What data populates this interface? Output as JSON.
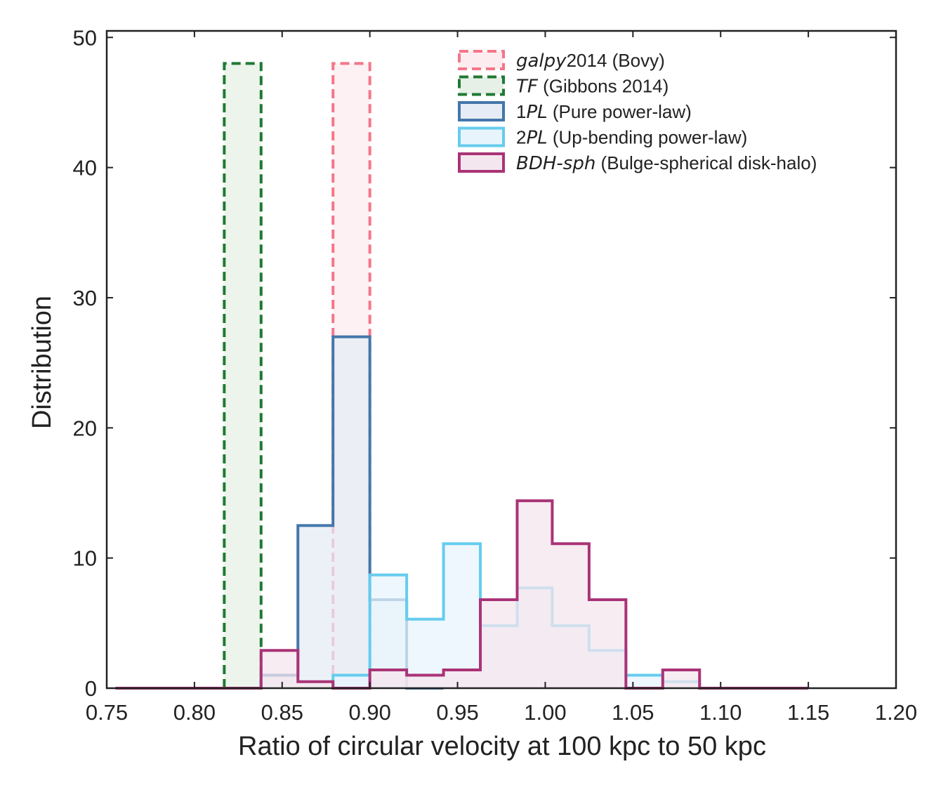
{
  "chart_data": {
    "type": "histogram",
    "xlabel": "Ratio of circular velocity at 100 kpc to 50 kpc",
    "ylabel": "Distribution",
    "xlim": [
      0.75,
      1.2
    ],
    "ylim": [
      0,
      50.5
    ],
    "xticks": [
      0.75,
      0.8,
      0.85,
      0.9,
      0.95,
      1.0,
      1.05,
      1.1,
      1.15,
      1.2
    ],
    "xtick_labels": [
      "0.75",
      "0.80",
      "0.85",
      "0.90",
      "0.95",
      "1.00",
      "1.05",
      "1.10",
      "1.15",
      "1.20"
    ],
    "yticks": [
      0,
      10,
      20,
      30,
      40,
      50
    ],
    "ytick_labels": [
      "0",
      "10",
      "20",
      "30",
      "40",
      "50"
    ],
    "grid": false,
    "legend_position": "top-right",
    "series": [
      {
        "key": "galpy",
        "label_italic": "galpy",
        "label_rest": "2014 (Bovy)",
        "line_color": "#f4768a",
        "fill_color": "#fdecef",
        "dashed": true,
        "edges": [
          0.879,
          0.9
        ],
        "values": [
          48
        ]
      },
      {
        "key": "tf",
        "label_italic": "TF",
        "label_rest": " (Gibbons 2014)",
        "line_color": "#1f7a33",
        "fill_color": "#e6f0e6",
        "dashed": true,
        "edges": [
          0.817,
          0.838
        ],
        "values": [
          48
        ]
      },
      {
        "key": "1pl",
        "label_pre": "1",
        "label_italic": "PL",
        "label_rest": " (Pure power-law)",
        "line_color": "#4477aa",
        "fill_color": "#e6ecf5",
        "dashed": false,
        "edges": [
          0.838,
          0.859,
          0.879,
          0.9,
          0.921,
          0.942
        ],
        "values": [
          1,
          12.5,
          27,
          6.8,
          0
        ]
      },
      {
        "key": "2pl",
        "label_pre": "2",
        "label_italic": "PL",
        "label_rest": " (Up-bending power-law)",
        "line_color": "#66ccee",
        "fill_color": "#e8f4fc",
        "dashed": false,
        "edges": [
          0.879,
          0.9,
          0.921,
          0.942,
          0.963,
          0.984,
          1.004,
          1.025,
          1.046,
          1.067,
          1.088
        ],
        "values": [
          1,
          8.7,
          5.3,
          11.1,
          4.8,
          7.7,
          4.8,
          2.9,
          1.0,
          0.5
        ]
      },
      {
        "key": "bdh",
        "label_italic": "BDH-sph",
        "label_rest": " (Bulge-spherical disk-halo)",
        "line_color": "#aa3377",
        "fill_color": "#f4e6ee",
        "dashed": false,
        "edges": [
          0.755,
          0.775,
          0.796,
          0.817,
          0.838,
          0.859,
          0.879,
          0.9,
          0.921,
          0.942,
          0.963,
          0.984,
          1.004,
          1.025,
          1.046,
          1.067,
          1.088,
          1.109,
          1.13,
          1.15
        ],
        "values": [
          0,
          0,
          0,
          0,
          2.9,
          0.5,
          0,
          1.4,
          1.0,
          1.4,
          6.8,
          14.4,
          11.1,
          6.8,
          0,
          1.4,
          0,
          0,
          0
        ]
      }
    ]
  }
}
